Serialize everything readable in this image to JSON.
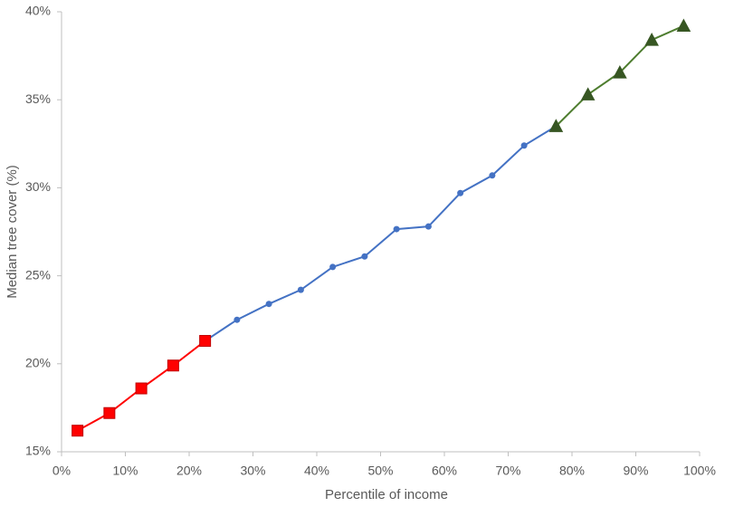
{
  "chart_data": {
    "type": "line",
    "xlabel": "Percentile of income",
    "ylabel": "Median tree cover (%)",
    "xlim": [
      0,
      100
    ],
    "xticks": [
      {
        "value": 0,
        "label": "0%"
      },
      {
        "value": 10,
        "label": "10%"
      },
      {
        "value": 20,
        "label": "20%"
      },
      {
        "value": 30,
        "label": "30%"
      },
      {
        "value": 40,
        "label": "40%"
      },
      {
        "value": 50,
        "label": "50%"
      },
      {
        "value": 60,
        "label": "60%"
      },
      {
        "value": 70,
        "label": "70%"
      },
      {
        "value": 80,
        "label": "80%"
      },
      {
        "value": 90,
        "label": "90%"
      },
      {
        "value": 100,
        "label": "100%"
      }
    ],
    "ylim": [
      15,
      40
    ],
    "yticks": [
      {
        "value": 15,
        "label": "15%"
      },
      {
        "value": 20,
        "label": "20%"
      },
      {
        "value": 25,
        "label": "25%"
      },
      {
        "value": 30,
        "label": "30%"
      },
      {
        "value": 35,
        "label": "35%"
      },
      {
        "value": 40,
        "label": "40%"
      }
    ],
    "grid": false,
    "series": [
      {
        "color": "#4472c4",
        "marker": "circle",
        "x": [
          22.5,
          27.5,
          32.5,
          37.5,
          42.5,
          47.5,
          52.5,
          57.5,
          62.5,
          67.5,
          72.5,
          77.5
        ],
        "values": [
          21.3,
          22.5,
          23.4,
          24.2,
          25.5,
          26.1,
          27.65,
          27.8,
          29.7,
          30.7,
          32.4,
          33.5
        ]
      },
      {
        "color": "#ff0000",
        "marker": "square",
        "x": [
          2.5,
          7.5,
          12.5,
          17.5,
          22.5
        ],
        "values": [
          16.2,
          17.2,
          18.6,
          19.9,
          21.3
        ]
      },
      {
        "color": "#4e7d2f",
        "marker": "triangle",
        "x": [
          77.5,
          82.5,
          87.5,
          92.5,
          97.5
        ],
        "values": [
          33.5,
          35.3,
          36.55,
          38.4,
          39.2
        ]
      }
    ]
  }
}
